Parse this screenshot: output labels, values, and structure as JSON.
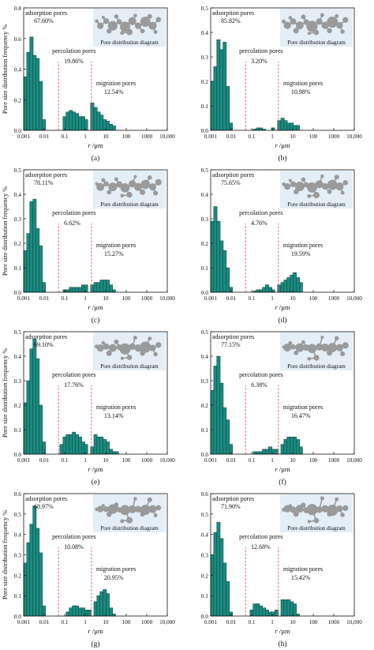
{
  "figure": {
    "xlabel_prefix": "r",
    "xlabel_unit": "/µm",
    "x_ticks": [
      "0.001",
      "0.01",
      "0.1",
      "1",
      "10",
      "100",
      "1000",
      "10,000"
    ],
    "y_axis_label": "Pore size distribution frequency %",
    "inset_caption": "Pore distribution diagram",
    "zone_labels": {
      "adsorption": "adsorption pores",
      "percolation": "percolation pores",
      "migration": "migration pores"
    }
  },
  "colors": {
    "bar": "#1a8a80",
    "bar_edge": "#0c3d39",
    "boundary_line": "#e05050",
    "inset_bg": "#e3eef6",
    "pore": "#9a9a9a"
  },
  "chart_data": [
    {
      "type": "bar",
      "id": "a",
      "panel_label": "(a)",
      "xlabel": "r /µm",
      "ylabel": "Pore size distribution frequency %",
      "x_scale": "log",
      "xlim": [
        0.001,
        10000
      ],
      "ylim": [
        0,
        0.8
      ],
      "y_ticks": [
        "0.0",
        "0.2",
        "0.4",
        "0.6",
        "0.8"
      ],
      "boundaries": [
        0.05,
        2
      ],
      "annotations": {
        "adsorption": "67.60%",
        "percolation": "19.86%",
        "migration": "12.54%"
      },
      "bins": [
        0.0012,
        0.0017,
        0.0024,
        0.0034,
        0.0048,
        0.0068,
        0.0096,
        0.1,
        0.14,
        0.2,
        0.28,
        0.4,
        0.56,
        0.8,
        1.1,
        2.2,
        3.2,
        4.5,
        6.3,
        9,
        12.5,
        18,
        25
      ],
      "values": [
        0.35,
        0.51,
        0.61,
        0.49,
        0.47,
        0.32,
        0.07,
        0.09,
        0.12,
        0.13,
        0.12,
        0.11,
        0.09,
        0.09,
        0.07,
        0.18,
        0.15,
        0.12,
        0.1,
        0.07,
        0.06,
        0.04,
        0.03
      ]
    },
    {
      "type": "bar",
      "id": "b",
      "panel_label": "(b)",
      "xlabel": "r /µm",
      "ylabel": "",
      "x_scale": "log",
      "xlim": [
        0.001,
        10000
      ],
      "ylim": [
        0,
        0.5
      ],
      "y_ticks": [
        "0.0",
        "0.1",
        "0.2",
        "0.3",
        "0.4",
        "0.5"
      ],
      "boundaries": [
        0.05,
        2
      ],
      "annotations": {
        "adsorption": "85.82%",
        "percolation": "3.20%",
        "migration": "10.98%"
      },
      "bins": [
        0.0012,
        0.0017,
        0.0024,
        0.0034,
        0.0048,
        0.0068,
        0.0096,
        0.14,
        0.2,
        0.28,
        0.4,
        1.1,
        2.2,
        3.2,
        4.5,
        6.3,
        9,
        12.5,
        18
      ],
      "values": [
        0.2,
        0.26,
        0.37,
        0.33,
        0.36,
        0.18,
        0.03,
        0.005,
        0.01,
        0.01,
        0.005,
        0.01,
        0.04,
        0.05,
        0.04,
        0.03,
        0.03,
        0.02,
        0.02
      ]
    },
    {
      "type": "bar",
      "id": "c",
      "panel_label": "(c)",
      "xlabel": "r /µm",
      "ylabel": "Pore size distribution frequency %",
      "x_scale": "log",
      "xlim": [
        0.001,
        10000
      ],
      "ylim": [
        0,
        0.5
      ],
      "y_ticks": [
        "0.0",
        "0.1",
        "0.2",
        "0.3",
        "0.4",
        "0.5"
      ],
      "boundaries": [
        0.05,
        2
      ],
      "annotations": {
        "adsorption": "78.11%",
        "percolation": "6.62%",
        "migration": "15.27%"
      },
      "bins": [
        0.0012,
        0.0017,
        0.0024,
        0.0034,
        0.0048,
        0.0068,
        0.0096,
        0.1,
        0.14,
        0.2,
        0.28,
        0.4,
        0.56,
        0.8,
        1.1,
        2.2,
        3.2,
        4.5,
        6.3,
        9,
        12.5,
        18,
        25
      ],
      "values": [
        0.17,
        0.24,
        0.37,
        0.38,
        0.26,
        0.19,
        0.04,
        0.01,
        0.01,
        0.02,
        0.02,
        0.02,
        0.02,
        0.03,
        0.03,
        0.03,
        0.04,
        0.04,
        0.05,
        0.05,
        0.05,
        0.03,
        0.01
      ]
    },
    {
      "type": "bar",
      "id": "d",
      "panel_label": "(d)",
      "xlabel": "r /µm",
      "ylabel": "",
      "x_scale": "log",
      "xlim": [
        0.001,
        10000
      ],
      "ylim": [
        0,
        0.5
      ],
      "y_ticks": [
        "0.0",
        "0.1",
        "0.2",
        "0.3",
        "0.4",
        "0.5"
      ],
      "boundaries": [
        0.05,
        2
      ],
      "annotations": {
        "adsorption": "75.65%",
        "percolation": "4.76%",
        "migration": "19.59%"
      },
      "bins": [
        0.0012,
        0.0017,
        0.0024,
        0.0034,
        0.0048,
        0.0068,
        0.0096,
        0.14,
        0.2,
        0.28,
        0.4,
        0.56,
        0.8,
        1.1,
        2.2,
        3.2,
        4.5,
        6.3,
        9,
        12.5,
        18,
        25
      ],
      "values": [
        0.29,
        0.35,
        0.29,
        0.21,
        0.17,
        0.1,
        0.02,
        0.005,
        0.01,
        0.01,
        0.02,
        0.03,
        0.02,
        0.01,
        0.03,
        0.04,
        0.05,
        0.06,
        0.07,
        0.08,
        0.06,
        0.04
      ]
    },
    {
      "type": "bar",
      "id": "e",
      "panel_label": "(e)",
      "xlabel": "r /µm",
      "ylabel": "Pore size distribution frequency %",
      "x_scale": "log",
      "xlim": [
        0.001,
        10000
      ],
      "ylim": [
        0,
        0.5
      ],
      "y_ticks": [
        "0.0",
        "0.1",
        "0.2",
        "0.3",
        "0.4",
        "0.5"
      ],
      "boundaries": [
        0.05,
        2
      ],
      "annotations": {
        "adsorption": "69.10%",
        "percolation": "17.76%",
        "migration": "13.14%"
      },
      "bins": [
        0.0012,
        0.0017,
        0.0024,
        0.0034,
        0.0048,
        0.0068,
        0.0096,
        0.07,
        0.1,
        0.14,
        0.2,
        0.28,
        0.4,
        0.56,
        0.8,
        1.1,
        2.2,
        3.2,
        4.5,
        6.3,
        9,
        12.5,
        18,
        25,
        35
      ],
      "values": [
        0.21,
        0.3,
        0.43,
        0.47,
        0.39,
        0.2,
        0.05,
        0.04,
        0.07,
        0.08,
        0.08,
        0.09,
        0.08,
        0.07,
        0.05,
        0.04,
        0.03,
        0.08,
        0.07,
        0.07,
        0.06,
        0.05,
        0.02,
        0.01,
        0.01
      ]
    },
    {
      "type": "bar",
      "id": "f",
      "panel_label": "(f)",
      "xlabel": "r /µm",
      "ylabel": "",
      "x_scale": "log",
      "xlim": [
        0.001,
        10000
      ],
      "ylim": [
        0,
        0.5
      ],
      "y_ticks": [
        "0.0",
        "0.1",
        "0.2",
        "0.3",
        "0.4",
        "0.5"
      ],
      "boundaries": [
        0.05,
        2
      ],
      "annotations": {
        "adsorption": "77.15%",
        "percolation": "6.38%",
        "migration": "16.47%"
      },
      "bins": [
        0.0012,
        0.0017,
        0.0024,
        0.0034,
        0.0048,
        0.0068,
        0.0096,
        0.14,
        0.2,
        0.28,
        0.4,
        0.56,
        0.8,
        1.1,
        1.6,
        3.2,
        4.5,
        6.3,
        9,
        12.5,
        18,
        25
      ],
      "values": [
        0.26,
        0.36,
        0.4,
        0.29,
        0.19,
        0.14,
        0.04,
        0.01,
        0.01,
        0.01,
        0.02,
        0.02,
        0.03,
        0.02,
        0.02,
        0.04,
        0.06,
        0.07,
        0.07,
        0.07,
        0.06,
        0.03
      ]
    },
    {
      "type": "bar",
      "id": "g",
      "panel_label": "(g)",
      "xlabel": "r /µm",
      "ylabel": "Pore size distribution frequency %",
      "x_scale": "log",
      "xlim": [
        0.001,
        10000
      ],
      "ylim": [
        0,
        0.6
      ],
      "y_ticks": [
        "0.0",
        "0.1",
        "0.2",
        "0.3",
        "0.4",
        "0.5",
        "0.6"
      ],
      "boundaries": [
        0.05,
        2
      ],
      "annotations": {
        "adsorption": "68.97%",
        "percolation": "10.08%",
        "migration": "20.95%"
      },
      "bins": [
        0.0012,
        0.0017,
        0.0024,
        0.0034,
        0.0048,
        0.0068,
        0.0096,
        0.14,
        0.2,
        0.28,
        0.4,
        0.56,
        0.8,
        1.1,
        1.6,
        3.2,
        4.5,
        6.3,
        9,
        12.5,
        18,
        25
      ],
      "values": [
        0.26,
        0.36,
        0.45,
        0.54,
        0.43,
        0.31,
        0.05,
        0.02,
        0.04,
        0.05,
        0.05,
        0.04,
        0.04,
        0.03,
        0.03,
        0.07,
        0.1,
        0.12,
        0.13,
        0.11,
        0.04,
        0.01
      ]
    },
    {
      "type": "bar",
      "id": "h",
      "panel_label": "(h)",
      "xlabel": "r /µm",
      "ylabel": "",
      "x_scale": "log",
      "xlim": [
        0.001,
        10000
      ],
      "ylim": [
        0,
        0.6
      ],
      "y_ticks": [
        "0.0",
        "0.1",
        "0.2",
        "0.3",
        "0.4",
        "0.5",
        "0.6"
      ],
      "boundaries": [
        0.05,
        2
      ],
      "annotations": {
        "adsorption": "71.90%",
        "percolation": "12.68%",
        "migration": "15.42%"
      },
      "bins": [
        0.0012,
        0.0017,
        0.0024,
        0.0034,
        0.0048,
        0.0068,
        0.0096,
        0.1,
        0.14,
        0.2,
        0.28,
        0.4,
        0.56,
        0.8,
        1.1,
        1.6,
        3.2,
        4.5,
        6.3,
        9,
        12.5,
        18
      ],
      "values": [
        0.3,
        0.41,
        0.46,
        0.38,
        0.26,
        0.17,
        0.02,
        0.03,
        0.06,
        0.06,
        0.05,
        0.04,
        0.03,
        0.02,
        0.02,
        0.03,
        0.08,
        0.08,
        0.08,
        0.07,
        0.06,
        0.01
      ]
    }
  ]
}
